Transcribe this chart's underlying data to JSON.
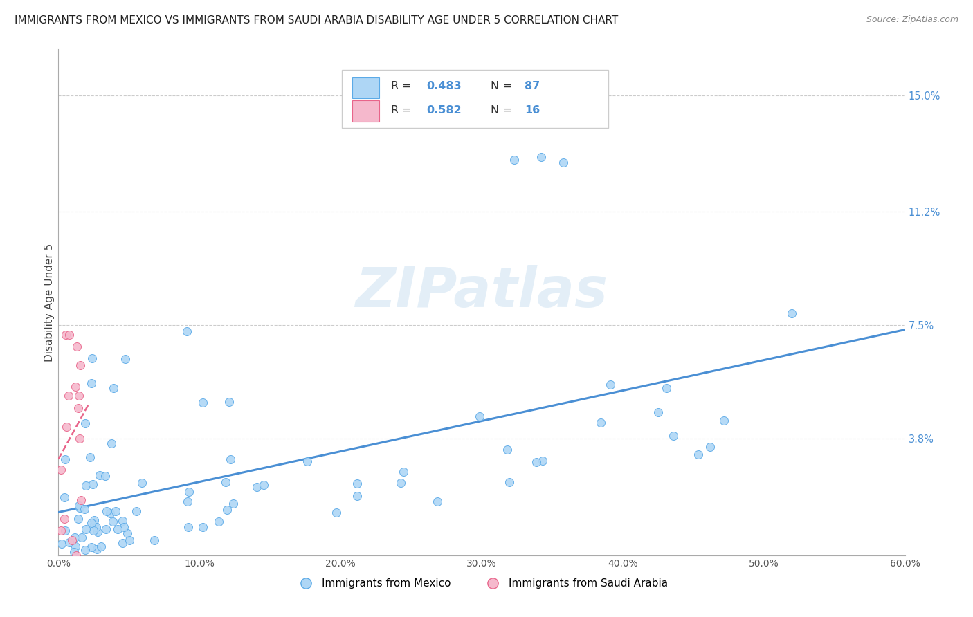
{
  "title": "IMMIGRANTS FROM MEXICO VS IMMIGRANTS FROM SAUDI ARABIA DISABILITY AGE UNDER 5 CORRELATION CHART",
  "source": "Source: ZipAtlas.com",
  "ylabel": "Disability Age Under 5",
  "xlim": [
    0.0,
    0.6
  ],
  "ylim": [
    0.0,
    0.165
  ],
  "xtick_vals": [
    0.0,
    0.1,
    0.2,
    0.3,
    0.4,
    0.5,
    0.6
  ],
  "xtick_labels": [
    "0.0%",
    "10.0%",
    "20.0%",
    "30.0%",
    "40.0%",
    "50.0%",
    "60.0%"
  ],
  "right_ytick_vals": [
    0.038,
    0.075,
    0.112,
    0.15
  ],
  "right_ytick_labels": [
    "3.8%",
    "7.5%",
    "11.2%",
    "15.0%"
  ],
  "legend_mexico": "Immigrants from Mexico",
  "legend_saudi": "Immigrants from Saudi Arabia",
  "r_mexico": "0.483",
  "n_mexico": "87",
  "r_saudi": "0.582",
  "n_saudi": "16",
  "mexico_fill": "#aed6f5",
  "mexico_edge": "#5baae7",
  "saudi_fill": "#f5b8cc",
  "saudi_edge": "#e8648a",
  "mexico_line_color": "#4a8fd4",
  "saudi_line_color": "#e8648a",
  "grid_color": "#cccccc",
  "watermark": "ZIPatlas",
  "watermark_color": "#c8dff0",
  "legend_text_color": "#4a8fd4",
  "figsize": [
    14.06,
    8.92
  ],
  "dpi": 100
}
